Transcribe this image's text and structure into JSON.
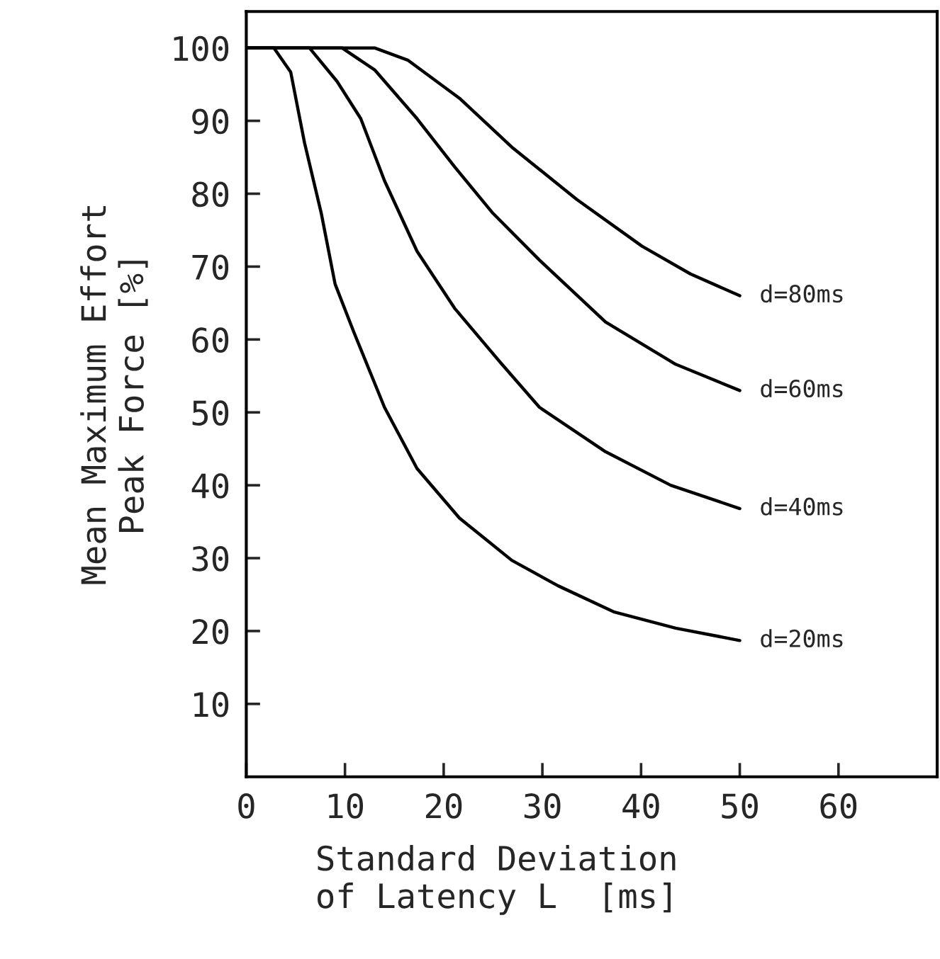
{
  "chart_data": {
    "type": "line",
    "xlabel": "Standard Deviation\nof Latency L  [ms]",
    "ylabel": "Mean Maximum Effort\nPeak Force [%]",
    "xlim": [
      0,
      70
    ],
    "ylim": [
      0,
      105
    ],
    "xticks": [
      0,
      10,
      20,
      30,
      40,
      50,
      60
    ],
    "yticks": [
      10,
      20,
      30,
      40,
      50,
      60,
      70,
      80,
      90,
      100
    ],
    "grid": false,
    "legend": false,
    "marker": "none",
    "line_style": "solid",
    "series": [
      {
        "name": "d=80ms",
        "color": "#000000",
        "x": [
          0,
          13,
          16.4,
          21.6,
          26.9,
          33.5,
          40.1,
          45,
          50
        ],
        "values": [
          100,
          100,
          98.3,
          93.1,
          86.4,
          79.2,
          72.8,
          69,
          66
        ]
      },
      {
        "name": "d=60ms",
        "color": "#000000",
        "x": [
          0,
          9.7,
          13,
          17.3,
          21.1,
          25,
          29.7,
          36.4,
          43.5,
          50
        ],
        "values": [
          100,
          100,
          97,
          90.3,
          83.7,
          77.3,
          70.9,
          62.4,
          56.6,
          53
        ]
      },
      {
        "name": "d=40ms",
        "color": "#000000",
        "x": [
          0,
          6.4,
          9.2,
          11.6,
          14,
          17.3,
          21.1,
          25.9,
          29.7,
          36.4,
          43,
          50
        ],
        "values": [
          100,
          100,
          95.4,
          90.3,
          81.8,
          72.1,
          64.3,
          56.6,
          50.7,
          44.6,
          40,
          36.8
        ]
      },
      {
        "name": "d=20ms",
        "color": "#000000",
        "x": [
          0,
          2.8,
          4.5,
          5.9,
          7.6,
          9,
          10.9,
          14,
          17.3,
          21.6,
          26.9,
          31.6,
          37.3,
          43.5,
          50
        ],
        "values": [
          100,
          100,
          96.7,
          87,
          77.3,
          67.6,
          61,
          50.7,
          42.3,
          35.5,
          29.7,
          26.2,
          22.6,
          20.4,
          18.7
        ]
      }
    ]
  }
}
